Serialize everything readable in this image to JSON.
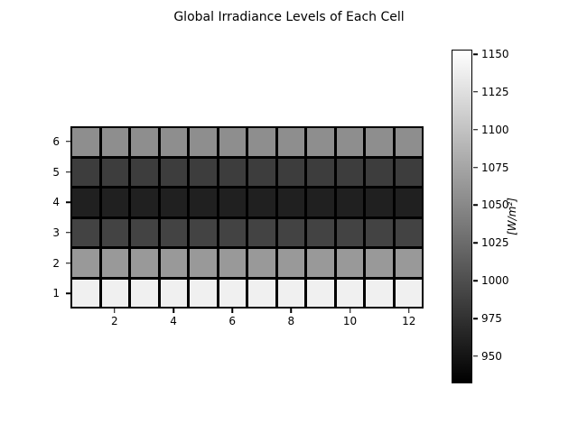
{
  "chart_data": {
    "type": "heatmap",
    "title": "Global Irradiance Levels of Each Cell",
    "colorbar_label": "[W/m²]",
    "colormap": "gray",
    "n_cols": 12,
    "n_rows": 6,
    "x_ticks": [
      2,
      4,
      6,
      8,
      10,
      12
    ],
    "y_ticks_top_to_bottom": [
      6,
      5,
      4,
      3,
      2,
      1
    ],
    "colorbar_ticks": [
      1150,
      1125,
      1100,
      1075,
      1050,
      1025,
      1000,
      975,
      950
    ],
    "vmin": 932,
    "vmax": 1153,
    "matrix_rows_top_to_bottom": [
      [
        1055,
        1055,
        1055,
        1055,
        1055,
        1055,
        1055,
        1055,
        1055,
        1055,
        1055,
        1055
      ],
      [
        985,
        985,
        985,
        985,
        985,
        985,
        985,
        985,
        985,
        985,
        985,
        985
      ],
      [
        960,
        960,
        960,
        960,
        960,
        960,
        960,
        960,
        960,
        960,
        960,
        960
      ],
      [
        990,
        990,
        990,
        990,
        990,
        990,
        990,
        990,
        990,
        990,
        990,
        990
      ],
      [
        1065,
        1065,
        1065,
        1065,
        1065,
        1065,
        1065,
        1065,
        1065,
        1065,
        1065,
        1065
      ],
      [
        1140,
        1140,
        1140,
        1140,
        1140,
        1140,
        1140,
        1140,
        1140,
        1140,
        1140,
        1140
      ]
    ],
    "legend_position": "right-colorbar",
    "grid": false
  }
}
